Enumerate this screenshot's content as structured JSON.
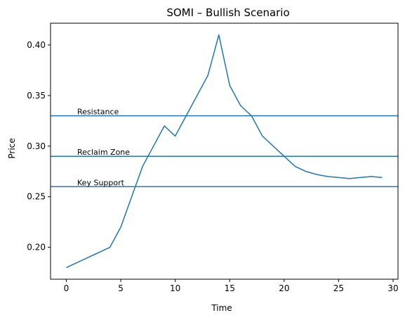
{
  "chart_data": {
    "type": "line",
    "title": "SOMI – Bullish Scenario",
    "xlabel": "Time",
    "ylabel": "Price",
    "xlim": [
      -1.45,
      30.45
    ],
    "ylim": [
      0.1685,
      0.4215
    ],
    "xticks": [
      0,
      5,
      10,
      15,
      20,
      25,
      30
    ],
    "yticks": [
      0.2,
      0.25,
      0.3,
      0.35,
      0.4
    ],
    "ytick_labels": [
      "0.20",
      "0.25",
      "0.30",
      "0.35",
      "0.40"
    ],
    "grid": false,
    "series": [
      {
        "color": "#1f77b4",
        "x": [
          0,
          4,
          5,
          6,
          7,
          8,
          9,
          10,
          11,
          12,
          13,
          14,
          15,
          16,
          17,
          18,
          19,
          20,
          21,
          22,
          23,
          24,
          25,
          26,
          27,
          28,
          29
        ],
        "y": [
          0.18,
          0.2,
          0.22,
          0.25,
          0.28,
          0.3,
          0.32,
          0.31,
          0.33,
          0.35,
          0.37,
          0.41,
          0.36,
          0.34,
          0.33,
          0.31,
          0.3,
          0.29,
          0.28,
          0.275,
          0.272,
          0.27,
          0.269,
          0.268,
          0.269,
          0.27,
          0.269
        ]
      }
    ],
    "hlines": [
      {
        "y": 0.33,
        "label": "Resistance",
        "label_x": 1,
        "color": "#1f77b4"
      },
      {
        "y": 0.29,
        "label": "Reclaim Zone",
        "label_x": 1,
        "color": "#1f77b4"
      },
      {
        "y": 0.26,
        "label": "Key Support",
        "label_x": 1,
        "color": "#1f77b4"
      }
    ]
  }
}
